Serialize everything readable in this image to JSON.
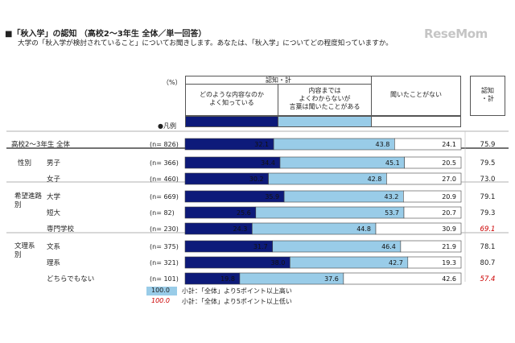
{
  "watermark": "ReseMom",
  "title": "■「秋入学」の認知 （高校2～3年生 全体／単一回答）",
  "subtitle": "大学の「秋入学が検討されていること」についてお聞きします。あなたは、「秋入学」についてどの程度知っていますか。",
  "unit_label": "（%）",
  "header": {
    "group_label": "認知・計",
    "col1": "どのような内容なのか\nよく知っている",
    "col2": "内容までは\nよくわからないが\n言葉は聞いたことがある",
    "col3": "聞いたことがない",
    "total_col": "認知\n・計",
    "legend_label": "●凡例"
  },
  "colors": {
    "series1": "#0d1a7a",
    "series2": "#99cce8",
    "series3": "#ffffff",
    "highlight_high_fill": "#99cce8",
    "highlight_low_text": "#cc0000"
  },
  "notes": [
    {
      "sample": "100.0",
      "text": "小計：「全体」より5ポイント以上高い"
    },
    {
      "sample": "100.0",
      "text": "小計：「全体」より5ポイント以上低い"
    }
  ],
  "chart_data": {
    "type": "bar",
    "stacked": true,
    "orientation": "horizontal",
    "series": [
      {
        "name": "どのような内容なのかよく知っている",
        "values": [
          32.1,
          34.4,
          30.2,
          35.9,
          25.6,
          24.3,
          31.7,
          38.0,
          19.8
        ]
      },
      {
        "name": "内容まではよくわからないが言葉は聞いたことがある",
        "values": [
          43.8,
          45.1,
          42.8,
          43.2,
          53.7,
          44.8,
          46.4,
          42.7,
          37.6
        ]
      },
      {
        "name": "聞いたことがない",
        "values": [
          24.1,
          20.5,
          27.0,
          20.9,
          20.7,
          30.9,
          21.9,
          19.3,
          42.6
        ]
      }
    ],
    "categories": [
      {
        "group": "",
        "label": "高校2～3年生 全体",
        "n": "(n= 826)",
        "total": "75.9",
        "flag": ""
      },
      {
        "group": "性別",
        "label": "男子",
        "n": "(n= 366)",
        "total": "79.5",
        "flag": ""
      },
      {
        "group": "",
        "label": "女子",
        "n": "(n= 460)",
        "total": "73.0",
        "flag": ""
      },
      {
        "group": "希望進路別",
        "label": "大学",
        "n": "(n= 669)",
        "total": "79.1",
        "flag": ""
      },
      {
        "group": "",
        "label": "短大",
        "n": "(n=  82)",
        "total": "79.3",
        "flag": ""
      },
      {
        "group": "",
        "label": "専門学校",
        "n": "(n= 230)",
        "total": "69.1",
        "flag": "low"
      },
      {
        "group": "文理系別",
        "label": "文系",
        "n": "(n= 375)",
        "total": "78.1",
        "flag": ""
      },
      {
        "group": "",
        "label": "理系",
        "n": "(n= 321)",
        "total": "80.7",
        "flag": ""
      },
      {
        "group": "",
        "label": "どちらでもない",
        "n": "(n= 101)",
        "total": "57.4",
        "flag": "low"
      }
    ]
  }
}
